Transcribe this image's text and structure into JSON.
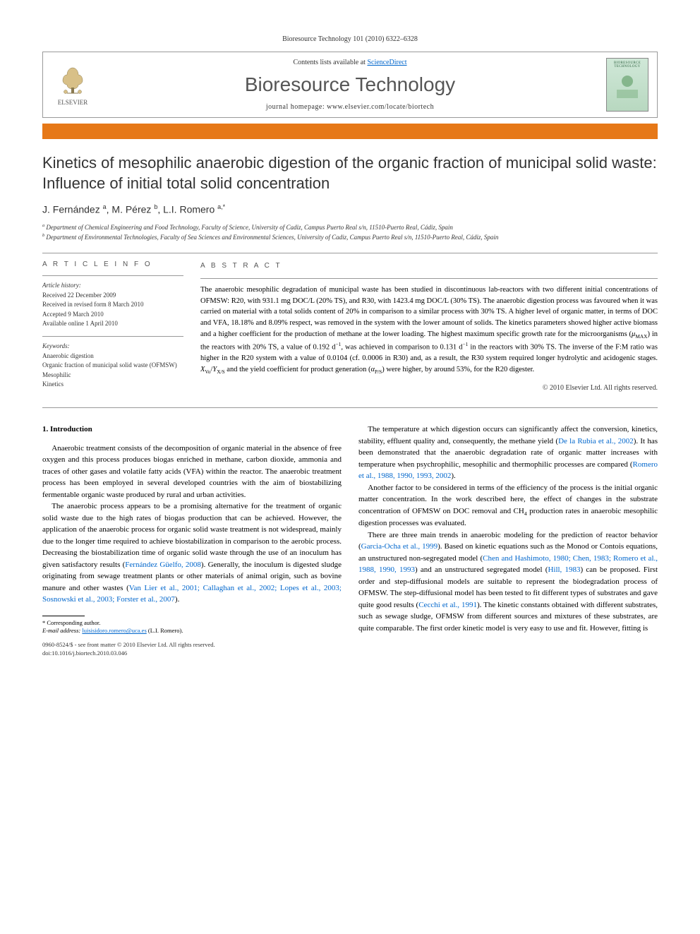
{
  "journal_header": "Bioresource Technology 101 (2010) 6322–6328",
  "header_box": {
    "contents_prefix": "Contents lists available at ",
    "contents_link": "ScienceDirect",
    "journal_name": "Bioresource Technology",
    "homepage_prefix": "journal homepage: ",
    "homepage_url": "www.elsevier.com/locate/biortech",
    "publisher": "ELSEVIER",
    "cover_text": "BIORESOURCE TECHNOLOGY"
  },
  "article": {
    "title": "Kinetics of mesophilic anaerobic digestion of the organic fraction of municipal solid waste: Influence of initial total solid concentration",
    "authors_html": "J. Fernández <sup>a</sup>, M. Pérez <sup>b</sup>, L.I. Romero <sup>a,*</sup>",
    "affiliations": [
      "a Department of Chemical Engineering and Food Technology, Faculty of Science, University of Cadiz, Campus Puerto Real s/n, 11510-Puerto Real, Cádiz, Spain",
      "b Department of Environmental Technologies, Faculty of Sea Sciences and Environmental Sciences, University of Cadiz, Campus Puerto Real s/n, 11510-Puerto Real, Cádiz, Spain"
    ]
  },
  "info": {
    "heading": "A R T I C L E   I N F O",
    "history_title": "Article history:",
    "history": [
      "Received 22 December 2009",
      "Received in revised form 8 March 2010",
      "Accepted 9 March 2010",
      "Available online 1 April 2010"
    ],
    "keywords_title": "Keywords:",
    "keywords": [
      "Anaerobic digestion",
      "Organic fraction of municipal solid waste (OFMSW)",
      "Mesophilic",
      "Kinetics"
    ]
  },
  "abstract": {
    "heading": "A B S T R A C T",
    "text": "The anaerobic mesophilic degradation of municipal waste has been studied in discontinuous lab-reactors with two different initial concentrations of OFMSW: R20, with 931.1 mg DOC/L (20% TS), and R30, with 1423.4 mg DOC/L (30% TS). The anaerobic digestion process was favoured when it was carried on material with a total solids content of 20% in comparison to a similar process with 30% TS. A higher level of organic matter, in terms of DOC and VFA, 18.18% and 8.09% respect, was removed in the system with the lower amount of solids. The kinetics parameters showed higher active biomass and a higher coefficient for the production of methane at the lower loading. The highest maximum specific growth rate for the microorganisms (μMAX) in the reactors with 20% TS, a value of 0.192 d⁻¹, was achieved in comparison to 0.131 d⁻¹ in the reactors with 30% TS. The inverse of the F:M ratio was higher in the R20 system with a value of 0.0104 (cf. 0.0006 in R30) and, as a result, the R30 system required longer hydrolytic and acidogenic stages. XVₒ/YX/S and the yield coefficient for product generation (αP/S) were higher, by around 53%, for the R20 digester.",
    "copyright": "© 2010 Elsevier Ltd. All rights reserved."
  },
  "body": {
    "section_heading": "1. Introduction",
    "col1": [
      "Anaerobic treatment consists of the decomposition of organic material in the absence of free oxygen and this process produces biogas enriched in methane, carbon dioxide, ammonia and traces of other gases and volatile fatty acids (VFA) within the reactor. The anaerobic treatment process has been employed in several developed countries with the aim of biostabilizing fermentable organic waste produced by rural and urban activities.",
      "The anaerobic process appears to be a promising alternative for the treatment of organic solid waste due to the high rates of biogas production that can be achieved. However, the application of the anaerobic process for organic solid waste treatment is not widespread, mainly due to the longer time required to achieve biostabilization in comparison to the aerobic process. Decreasing the biostabilization time of organic solid waste through the use of an inoculum has given satisfactory results (|Fernández Güelfo, 2008|). Generally, the inoculum is digested sludge originating from sewage treatment plants or other materials of animal origin, such as bovine manure and other wastes (|Van Lier et al., 2001; Callaghan et al., 2002; Lopes et al., 2003; Sosnowski et al., 2003; Forster et al., 2007|)."
    ],
    "col2": [
      "The temperature at which digestion occurs can significantly affect the conversion, kinetics, stability, effluent quality and, consequently, the methane yield (|De la Rubia et al., 2002|). It has been demonstrated that the anaerobic degradation rate of organic matter increases with temperature when psychrophilic, mesophilic and thermophilic processes are compared (|Romero et al., 1988, 1990, 1993, 2002|).",
      "Another factor to be considered in terms of the efficiency of the process is the initial organic matter concentration. In the work described here, the effect of changes in the substrate concentration of OFMSW on DOC removal and CH₄ production rates in anaerobic mesophilic digestion processes was evaluated.",
      "There are three main trends in anaerobic modeling for the prediction of reactor behavior (|Garcia-Ocha et al., 1999|). Based on kinetic equations such as the Monod or Contois equations, an unstructured non-segregated model (|Chen and Hashimoto, 1980; Chen, 1983; Romero et al., 1988, 1990, 1993|) and an unstructured segregated model (|Hill, 1983|) can be proposed. First order and step-diffusional models are suitable to represent the biodegradation process of OFMSW. The step-diffusional model has been tested to fit different types of substrates and gave quite good results (|Cecchi et al., 1991|). The kinetic constants obtained with different substrates, such as sewage sludge, OFMSW from different sources and mixtures of these substrates, are quite comparable. The first order kinetic model is very easy to use and fit. However, fitting is"
    ]
  },
  "footnote": {
    "corresponding": "* Corresponding author.",
    "email_label": "E-mail address: ",
    "email": "luisisidoro.romero@uca.es",
    "email_suffix": " (L.I. Romero)."
  },
  "doi": {
    "line1": "0960-8524/$ - see front matter © 2010 Elsevier Ltd. All rights reserved.",
    "line2": "doi:10.1016/j.biortech.2010.03.046"
  },
  "style": {
    "accent_color": "#e67817",
    "link_color": "#0066cc",
    "text_color": "#000000",
    "muted_color": "#555555"
  }
}
